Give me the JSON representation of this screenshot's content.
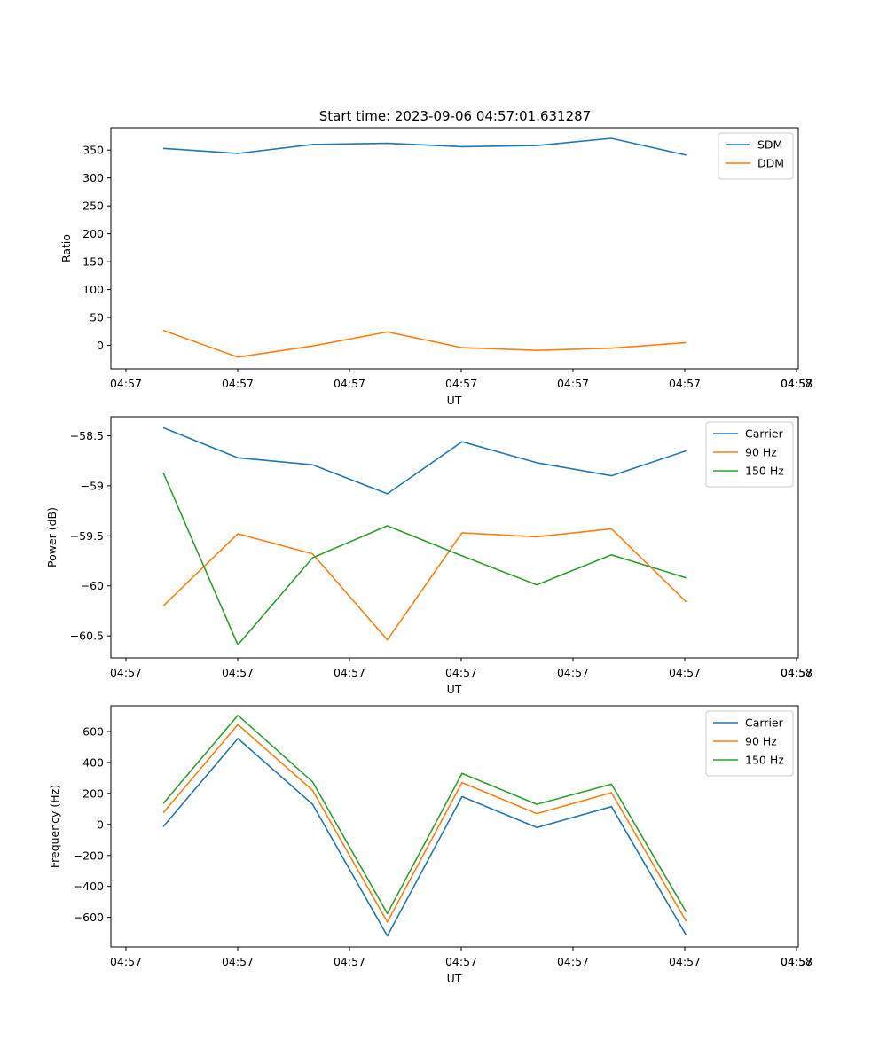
{
  "figure_title": "Start time: 2023-09-06 04:57:01.631287",
  "chart_data": [
    {
      "type": "line",
      "title": "Start time: 2023-09-06 04:57:01.631287",
      "xlabel": "UT",
      "ylabel": "Ratio",
      "x_tick_labels": [
        "04:57",
        "04:57",
        "04:57",
        "04:57",
        "04:57",
        "04:57",
        "04:57",
        "04:58"
      ],
      "x": [
        1,
        2,
        3,
        4,
        5,
        6,
        7,
        8
      ],
      "xlim": [
        0.3,
        9.5
      ],
      "ylim": [
        -42,
        390
      ],
      "yticks": [
        0,
        50,
        100,
        150,
        200,
        250,
        300,
        350
      ],
      "legend": "top-right",
      "series": [
        {
          "name": "SDM",
          "color": "#1f77b4",
          "values": [
            353,
            344,
            360,
            362,
            356,
            358,
            371,
            341
          ]
        },
        {
          "name": "DDM",
          "color": "#ff7f0e",
          "values": [
            27,
            -21,
            -1,
            24,
            -4,
            -9,
            -5,
            5
          ]
        }
      ]
    },
    {
      "type": "line",
      "title": "",
      "xlabel": "UT",
      "ylabel": "Power (dB)",
      "x_tick_labels": [
        "04:57",
        "04:57",
        "04:57",
        "04:57",
        "04:57",
        "04:57",
        "04:57",
        "04:58"
      ],
      "x": [
        1,
        2,
        3,
        4,
        5,
        6,
        7,
        8
      ],
      "xlim": [
        0.3,
        9.5
      ],
      "ylim": [
        -60.72,
        -58.31
      ],
      "yticks": [
        -60.5,
        -60.0,
        -59.5,
        -59.0,
        -58.5
      ],
      "legend": "top-right",
      "series": [
        {
          "name": "Carrier",
          "color": "#1f77b4",
          "values": [
            -58.42,
            -58.72,
            -58.79,
            -59.08,
            -58.56,
            -58.77,
            -58.9,
            -58.65
          ]
        },
        {
          "name": "90 Hz",
          "color": "#ff7f0e",
          "values": [
            -60.2,
            -59.48,
            -59.68,
            -60.54,
            -59.47,
            -59.51,
            -59.43,
            -60.16
          ]
        },
        {
          "name": "150 Hz",
          "color": "#2ca02c",
          "values": [
            -58.87,
            -60.59,
            -59.72,
            -59.4,
            -59.7,
            -59.99,
            -59.69,
            -59.92
          ]
        }
      ]
    },
    {
      "type": "line",
      "title": "",
      "xlabel": "UT",
      "ylabel": "Frequency (Hz)",
      "x_tick_labels": [
        "04:57",
        "04:57",
        "04:57",
        "04:57",
        "04:57",
        "04:57",
        "04:57",
        "04:58"
      ],
      "x": [
        1,
        2,
        3,
        4,
        5,
        6,
        7,
        8
      ],
      "xlim": [
        0.3,
        9.5
      ],
      "ylim": [
        -791,
        766
      ],
      "yticks": [
        -600,
        -400,
        -200,
        0,
        200,
        400,
        600
      ],
      "legend": "top-right",
      "series": [
        {
          "name": "Carrier",
          "color": "#1f77b4",
          "values": [
            -15,
            555,
            130,
            -720,
            180,
            -20,
            115,
            -715
          ]
        },
        {
          "name": "90 Hz",
          "color": "#ff7f0e",
          "values": [
            75,
            645,
            220,
            -630,
            270,
            70,
            205,
            -625
          ]
        },
        {
          "name": "150 Hz",
          "color": "#2ca02c",
          "values": [
            135,
            705,
            275,
            -575,
            330,
            130,
            260,
            -565
          ]
        }
      ]
    }
  ]
}
